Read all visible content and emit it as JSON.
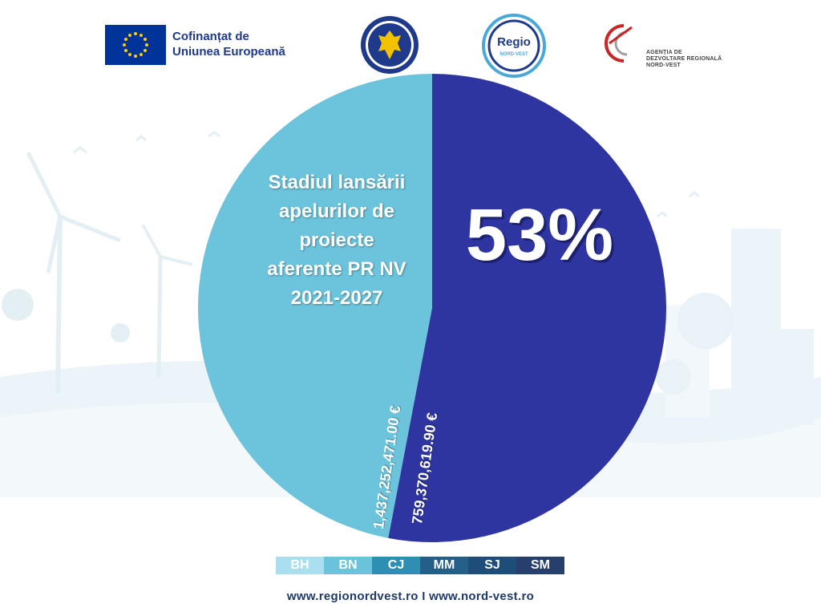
{
  "header": {
    "eu_line1": "Cofinanțat de",
    "eu_line2": "Uniunea Europeană",
    "regio_name": "Regio",
    "regio_sub": "NORD-VEST",
    "adr_line1": "AGENȚIA DE",
    "adr_line2": "DEZVOLTARE REGIONALĂ",
    "adr_line3": "NORD-VEST"
  },
  "chart_data": {
    "type": "pie",
    "title_lines": [
      "Stadiul lansării",
      "apelurilor de",
      "proiecte",
      "aferente PR NV",
      "2021-2027"
    ],
    "center_percent": "53%",
    "slices": [
      {
        "label": "1,437,252,471.00 €",
        "value": 1437252471.0,
        "color": "#6cc4dc"
      },
      {
        "label": "759,370,619.90 €",
        "value": 759370619.9,
        "color": "#2e35a0"
      }
    ],
    "launched_fraction": 0.53
  },
  "counties": [
    {
      "code": "BH",
      "color": "#a9dfee"
    },
    {
      "code": "BN",
      "color": "#6ac3da"
    },
    {
      "code": "CJ",
      "color": "#2f8fb3"
    },
    {
      "code": "MM",
      "color": "#245f8a"
    },
    {
      "code": "SJ",
      "color": "#1f4d7a"
    },
    {
      "code": "SM",
      "color": "#263f6d"
    }
  ],
  "footer": {
    "text": "www.regionordvest.ro I www.nord-vest.ro"
  }
}
